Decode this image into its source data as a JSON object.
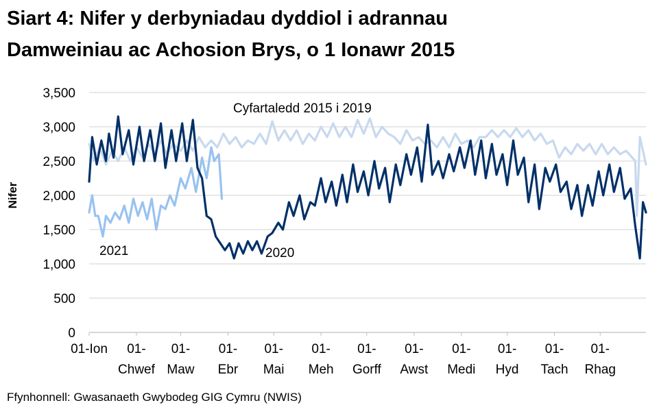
{
  "title_line1": "Siart 4: Nifer y derbyniadau dyddiol i adrannau",
  "title_line2": "Damweiniau ac Achosion Brys, o 1 Ionawr 2015",
  "source": "Ffynhonnell: Gwasanaeth Gwybodeg GIG Cymru (NWIS)",
  "chart_data": {
    "type": "line",
    "ylabel": "Nifer",
    "xlabel": "",
    "ylim": [
      0,
      3500
    ],
    "y_ticks": [
      0,
      500,
      1000,
      1500,
      2000,
      2500,
      3000,
      3500
    ],
    "y_tick_labels": [
      "0",
      "500",
      "1,000",
      "1,500",
      "2,000",
      "2,500",
      "3,000",
      "3,500"
    ],
    "grid": true,
    "legend": "none (inline labels)",
    "x_ticks": [
      {
        "date": "01-01",
        "line1": "01-Ion",
        "line2": ""
      },
      {
        "date": "02-01",
        "line1": "01-",
        "line2": "Chwef"
      },
      {
        "date": "03-01",
        "line1": "01-",
        "line2": "Maw"
      },
      {
        "date": "04-01",
        "line1": "01-",
        "line2": "Ebr"
      },
      {
        "date": "05-01",
        "line1": "01-",
        "line2": "Mai"
      },
      {
        "date": "06-01",
        "line1": "01-",
        "line2": "Meh"
      },
      {
        "date": "07-01",
        "line1": "01-",
        "line2": "Gorff"
      },
      {
        "date": "08-01",
        "line1": "01-",
        "line2": "Awst"
      },
      {
        "date": "09-01",
        "line1": "01-",
        "line2": "Medi"
      },
      {
        "date": "10-01",
        "line1": "01-",
        "line2": "Hyd"
      },
      {
        "date": "11-01",
        "line1": "01-",
        "line2": "Tach"
      },
      {
        "date": "12-01",
        "line1": "01-",
        "line2": "Rhag"
      }
    ],
    "series": [
      {
        "name": "Cyfartaledd 2015 i 2019",
        "color": "#c8d9ee",
        "points": [
          [
            "01-01",
            2750
          ],
          [
            "01-04",
            2500
          ],
          [
            "01-08",
            2700
          ],
          [
            "01-12",
            2450
          ],
          [
            "01-16",
            2650
          ],
          [
            "01-20",
            2500
          ],
          [
            "01-24",
            2700
          ],
          [
            "01-28",
            2500
          ],
          [
            "02-01",
            2700
          ],
          [
            "02-05",
            2550
          ],
          [
            "02-09",
            2750
          ],
          [
            "02-13",
            2600
          ],
          [
            "02-17",
            2800
          ],
          [
            "02-21",
            2600
          ],
          [
            "02-25",
            2750
          ],
          [
            "03-01",
            2650
          ],
          [
            "03-05",
            2800
          ],
          [
            "03-09",
            2650
          ],
          [
            "03-13",
            2850
          ],
          [
            "03-17",
            2700
          ],
          [
            "03-21",
            2800
          ],
          [
            "03-25",
            2700
          ],
          [
            "03-29",
            2900
          ],
          [
            "04-02",
            2750
          ],
          [
            "04-06",
            2850
          ],
          [
            "04-10",
            2700
          ],
          [
            "04-14",
            2800
          ],
          [
            "04-18",
            2750
          ],
          [
            "04-22",
            2900
          ],
          [
            "04-26",
            2750
          ],
          [
            "04-30",
            3080
          ],
          [
            "05-04",
            2800
          ],
          [
            "05-08",
            2950
          ],
          [
            "05-12",
            2800
          ],
          [
            "05-16",
            2950
          ],
          [
            "05-20",
            2750
          ],
          [
            "05-24",
            2900
          ],
          [
            "05-28",
            2800
          ],
          [
            "06-01",
            3000
          ],
          [
            "06-05",
            2850
          ],
          [
            "06-09",
            3050
          ],
          [
            "06-13",
            2850
          ],
          [
            "06-17",
            3000
          ],
          [
            "06-21",
            2850
          ],
          [
            "06-25",
            3100
          ],
          [
            "06-29",
            2900
          ],
          [
            "07-03",
            3120
          ],
          [
            "07-07",
            2850
          ],
          [
            "07-11",
            3000
          ],
          [
            "07-15",
            2900
          ],
          [
            "07-19",
            2850
          ],
          [
            "07-23",
            2750
          ],
          [
            "07-27",
            2950
          ],
          [
            "07-31",
            2800
          ],
          [
            "08-04",
            2850
          ],
          [
            "08-08",
            2750
          ],
          [
            "08-12",
            2800
          ],
          [
            "08-16",
            2700
          ],
          [
            "08-20",
            2850
          ],
          [
            "08-24",
            2700
          ],
          [
            "08-28",
            2900
          ],
          [
            "09-01",
            2750
          ],
          [
            "09-05",
            2800
          ],
          [
            "09-09",
            2700
          ],
          [
            "09-13",
            2850
          ],
          [
            "09-17",
            2850
          ],
          [
            "09-21",
            2950
          ],
          [
            "09-25",
            2850
          ],
          [
            "09-29",
            2950
          ],
          [
            "10-03",
            2850
          ],
          [
            "10-07",
            2980
          ],
          [
            "10-11",
            2850
          ],
          [
            "10-15",
            2950
          ],
          [
            "10-19",
            2800
          ],
          [
            "10-23",
            2900
          ],
          [
            "10-27",
            2750
          ],
          [
            "10-31",
            2800
          ],
          [
            "11-04",
            2550
          ],
          [
            "11-08",
            2700
          ],
          [
            "11-12",
            2600
          ],
          [
            "11-16",
            2750
          ],
          [
            "11-20",
            2650
          ],
          [
            "11-24",
            2750
          ],
          [
            "11-28",
            2600
          ],
          [
            "12-02",
            2750
          ],
          [
            "12-06",
            2600
          ],
          [
            "12-10",
            2700
          ],
          [
            "12-14",
            2600
          ],
          [
            "12-18",
            2650
          ],
          [
            "12-22",
            2550
          ],
          [
            "12-24",
            2500
          ],
          [
            "12-25",
            1700
          ],
          [
            "12-27",
            2850
          ],
          [
            "12-29",
            2650
          ],
          [
            "12-31",
            2450
          ]
        ]
      },
      {
        "name": "2021",
        "color": "#99c2f0",
        "points": [
          [
            "01-01",
            1750
          ],
          [
            "01-03",
            2000
          ],
          [
            "01-05",
            1700
          ],
          [
            "01-07",
            1700
          ],
          [
            "01-10",
            1400
          ],
          [
            "01-12",
            1700
          ],
          [
            "01-15",
            1600
          ],
          [
            "01-18",
            1750
          ],
          [
            "01-21",
            1650
          ],
          [
            "01-24",
            1850
          ],
          [
            "01-27",
            1600
          ],
          [
            "01-30",
            1950
          ],
          [
            "02-02",
            1700
          ],
          [
            "02-05",
            1900
          ],
          [
            "02-08",
            1650
          ],
          [
            "02-11",
            1950
          ],
          [
            "02-14",
            1500
          ],
          [
            "02-17",
            1850
          ],
          [
            "02-20",
            1800
          ],
          [
            "02-23",
            2000
          ],
          [
            "02-26",
            1850
          ],
          [
            "03-01",
            2250
          ],
          [
            "03-04",
            2100
          ],
          [
            "03-08",
            2400
          ],
          [
            "03-11",
            2050
          ],
          [
            "03-15",
            2550
          ],
          [
            "03-18",
            2250
          ],
          [
            "03-21",
            2700
          ],
          [
            "03-23",
            2500
          ],
          [
            "03-26",
            2600
          ],
          [
            "03-28",
            1950
          ]
        ]
      },
      {
        "name": "2020",
        "color": "#003068",
        "points": [
          [
            "01-01",
            2200
          ],
          [
            "01-03",
            2850
          ],
          [
            "01-06",
            2450
          ],
          [
            "01-09",
            2800
          ],
          [
            "01-12",
            2500
          ],
          [
            "01-14",
            2900
          ],
          [
            "01-17",
            2550
          ],
          [
            "01-20",
            3150
          ],
          [
            "01-23",
            2600
          ],
          [
            "01-27",
            2950
          ],
          [
            "01-30",
            2450
          ],
          [
            "02-03",
            3000
          ],
          [
            "02-06",
            2500
          ],
          [
            "02-10",
            2950
          ],
          [
            "02-13",
            2500
          ],
          [
            "02-17",
            3050
          ],
          [
            "02-20",
            2400
          ],
          [
            "02-24",
            2950
          ],
          [
            "02-27",
            2500
          ],
          [
            "03-02",
            3050
          ],
          [
            "03-05",
            2500
          ],
          [
            "03-09",
            3100
          ],
          [
            "03-12",
            2400
          ],
          [
            "03-15",
            2250
          ],
          [
            "03-18",
            1700
          ],
          [
            "03-21",
            1650
          ],
          [
            "03-24",
            1400
          ],
          [
            "03-27",
            1300
          ],
          [
            "03-30",
            1200
          ],
          [
            "04-02",
            1300
          ],
          [
            "04-05",
            1080
          ],
          [
            "04-08",
            1300
          ],
          [
            "04-11",
            1150
          ],
          [
            "04-14",
            1330
          ],
          [
            "04-17",
            1200
          ],
          [
            "04-20",
            1330
          ],
          [
            "04-23",
            1150
          ],
          [
            "04-27",
            1400
          ],
          [
            "04-30",
            1450
          ],
          [
            "05-04",
            1600
          ],
          [
            "05-07",
            1500
          ],
          [
            "05-11",
            1900
          ],
          [
            "05-14",
            1700
          ],
          [
            "05-18",
            2000
          ],
          [
            "05-21",
            1650
          ],
          [
            "05-25",
            1900
          ],
          [
            "05-28",
            1850
          ],
          [
            "06-01",
            2250
          ],
          [
            "06-04",
            1900
          ],
          [
            "06-08",
            2200
          ],
          [
            "06-11",
            1850
          ],
          [
            "06-15",
            2300
          ],
          [
            "06-18",
            1900
          ],
          [
            "06-22",
            2450
          ],
          [
            "06-25",
            2050
          ],
          [
            "06-29",
            2350
          ],
          [
            "07-02",
            2000
          ],
          [
            "07-06",
            2500
          ],
          [
            "07-09",
            2100
          ],
          [
            "07-13",
            2400
          ],
          [
            "07-16",
            1900
          ],
          [
            "07-20",
            2450
          ],
          [
            "07-23",
            2150
          ],
          [
            "07-27",
            2600
          ],
          [
            "07-30",
            2300
          ],
          [
            "08-03",
            2700
          ],
          [
            "08-06",
            2200
          ],
          [
            "08-10",
            3030
          ],
          [
            "08-13",
            2300
          ],
          [
            "08-17",
            2500
          ],
          [
            "08-20",
            2250
          ],
          [
            "08-24",
            2600
          ],
          [
            "08-27",
            2350
          ],
          [
            "08-31",
            2700
          ],
          [
            "09-03",
            2400
          ],
          [
            "09-07",
            2800
          ],
          [
            "09-10",
            2300
          ],
          [
            "09-14",
            2800
          ],
          [
            "09-17",
            2250
          ],
          [
            "09-21",
            2750
          ],
          [
            "09-24",
            2300
          ],
          [
            "09-28",
            2600
          ],
          [
            "10-01",
            2150
          ],
          [
            "10-05",
            2800
          ],
          [
            "10-08",
            2300
          ],
          [
            "10-12",
            2550
          ],
          [
            "10-15",
            1900
          ],
          [
            "10-19",
            2450
          ],
          [
            "10-22",
            1800
          ],
          [
            "10-26",
            2400
          ],
          [
            "10-29",
            2200
          ],
          [
            "11-02",
            2450
          ],
          [
            "11-05",
            2050
          ],
          [
            "11-09",
            2200
          ],
          [
            "11-12",
            1800
          ],
          [
            "11-16",
            2150
          ],
          [
            "11-19",
            1700
          ],
          [
            "11-23",
            2150
          ],
          [
            "11-26",
            1850
          ],
          [
            "11-30",
            2350
          ],
          [
            "12-03",
            2000
          ],
          [
            "12-07",
            2450
          ],
          [
            "12-10",
            2050
          ],
          [
            "12-14",
            2400
          ],
          [
            "12-17",
            1950
          ],
          [
            "12-21",
            2100
          ],
          [
            "12-24",
            1550
          ],
          [
            "12-27",
            1080
          ],
          [
            "12-29",
            1900
          ],
          [
            "12-31",
            1750
          ]
        ]
      }
    ]
  }
}
